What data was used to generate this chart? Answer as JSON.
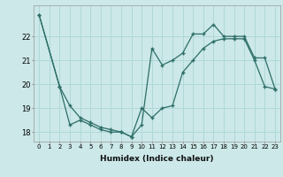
{
  "xlabel": "Humidex (Indice chaleur)",
  "background_color": "#cce8e8",
  "grid_color": "#b0d8d8",
  "line_color": "#2d6e68",
  "xlim": [
    -0.5,
    23.5
  ],
  "ylim": [
    17.6,
    23.3
  ],
  "yticks": [
    18,
    19,
    20,
    21,
    22
  ],
  "xticks": [
    0,
    1,
    2,
    3,
    4,
    5,
    6,
    7,
    8,
    9,
    10,
    11,
    12,
    13,
    14,
    15,
    16,
    17,
    18,
    19,
    20,
    21,
    22,
    23
  ],
  "line1_x": [
    0,
    2,
    3,
    4,
    5,
    6,
    7,
    8,
    9,
    10,
    11,
    12,
    13,
    14,
    15,
    16,
    17,
    18,
    19,
    20,
    21,
    22,
    23
  ],
  "line1_y": [
    22.9,
    19.9,
    18.3,
    18.5,
    18.3,
    18.1,
    18.0,
    18.0,
    17.8,
    18.3,
    21.5,
    20.8,
    21.0,
    21.3,
    22.1,
    22.1,
    22.5,
    22.0,
    22.0,
    22.0,
    21.1,
    21.1,
    19.8
  ],
  "line2_x": [
    0,
    2,
    3,
    4,
    5,
    6,
    7,
    8,
    9,
    10,
    11,
    12,
    13,
    14,
    15,
    16,
    17,
    18,
    19,
    20,
    21,
    22,
    23
  ],
  "line2_y": [
    22.9,
    19.9,
    19.1,
    18.6,
    18.4,
    18.2,
    18.1,
    18.0,
    17.8,
    19.0,
    18.6,
    19.0,
    19.1,
    20.5,
    21.0,
    21.5,
    21.8,
    21.9,
    21.9,
    21.9,
    21.0,
    19.9,
    19.8
  ]
}
